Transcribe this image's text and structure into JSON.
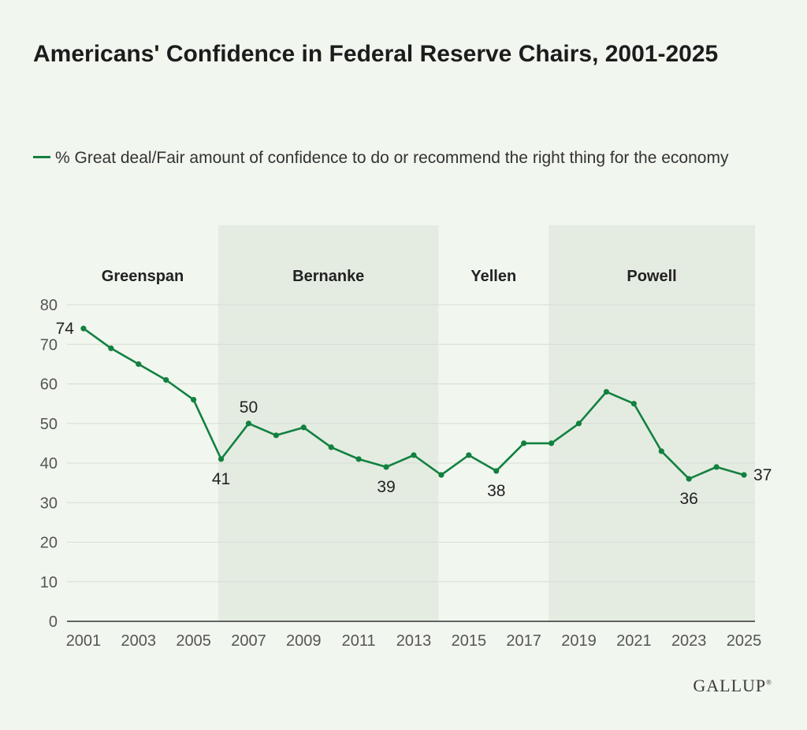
{
  "chart_data": {
    "type": "line",
    "title": "Americans' Confidence in Federal Reserve Chairs, 2001-2025",
    "series": [
      {
        "name": "% Great deal/Fair amount of confidence to do or recommend the right thing for the economy",
        "color": "#12813f",
        "x": [
          2001,
          2002,
          2003,
          2004,
          2005,
          2006,
          2007,
          2008,
          2009,
          2010,
          2011,
          2012,
          2013,
          2014,
          2015,
          2016,
          2017,
          2018,
          2019,
          2020,
          2021,
          2022,
          2023,
          2024,
          2025
        ],
        "values": [
          74,
          69,
          65,
          61,
          56,
          41,
          50,
          47,
          49,
          44,
          41,
          39,
          42,
          37,
          42,
          38,
          45,
          45,
          50,
          58,
          55,
          43,
          36,
          39,
          37
        ]
      }
    ],
    "data_labels": [
      {
        "year": 2001,
        "text": "74",
        "pos": "left"
      },
      {
        "year": 2006,
        "text": "41",
        "pos": "below"
      },
      {
        "year": 2007,
        "text": "50",
        "pos": "above"
      },
      {
        "year": 2012,
        "text": "39",
        "pos": "below"
      },
      {
        "year": 2016,
        "text": "38",
        "pos": "below"
      },
      {
        "year": 2023,
        "text": "36",
        "pos": "below"
      },
      {
        "year": 2025,
        "text": "37",
        "pos": "right"
      }
    ],
    "xticks": [
      "2001",
      "2003",
      "2005",
      "2007",
      "2009",
      "2011",
      "2013",
      "2015",
      "2017",
      "2019",
      "2021",
      "2023",
      "2025"
    ],
    "yticks": [
      "0",
      "10",
      "20",
      "30",
      "40",
      "50",
      "60",
      "70",
      "80"
    ],
    "ylim": [
      0,
      80
    ],
    "xlim": [
      2000.4,
      2025.4
    ],
    "grid": true,
    "xlabel": "",
    "ylabel": "",
    "eras": [
      {
        "name": "Greenspan",
        "start": 2000.4,
        "end": 2005.9,
        "shaded": false
      },
      {
        "name": "Bernanke",
        "start": 2005.9,
        "end": 2013.9,
        "shaded": true
      },
      {
        "name": "Yellen",
        "start": 2013.9,
        "end": 2017.9,
        "shaded": false
      },
      {
        "name": "Powell",
        "start": 2017.9,
        "end": 2025.4,
        "shaded": true
      }
    ],
    "shade_color": "#e4ece2"
  },
  "header": {
    "title": "Americans' Confidence in Federal Reserve Chairs, 2001-2025"
  },
  "legend": {
    "label": "% Great deal/Fair amount of confidence to do or recommend the right thing for the economy"
  },
  "brand": {
    "name": "GALLUP",
    "mark": "®"
  }
}
